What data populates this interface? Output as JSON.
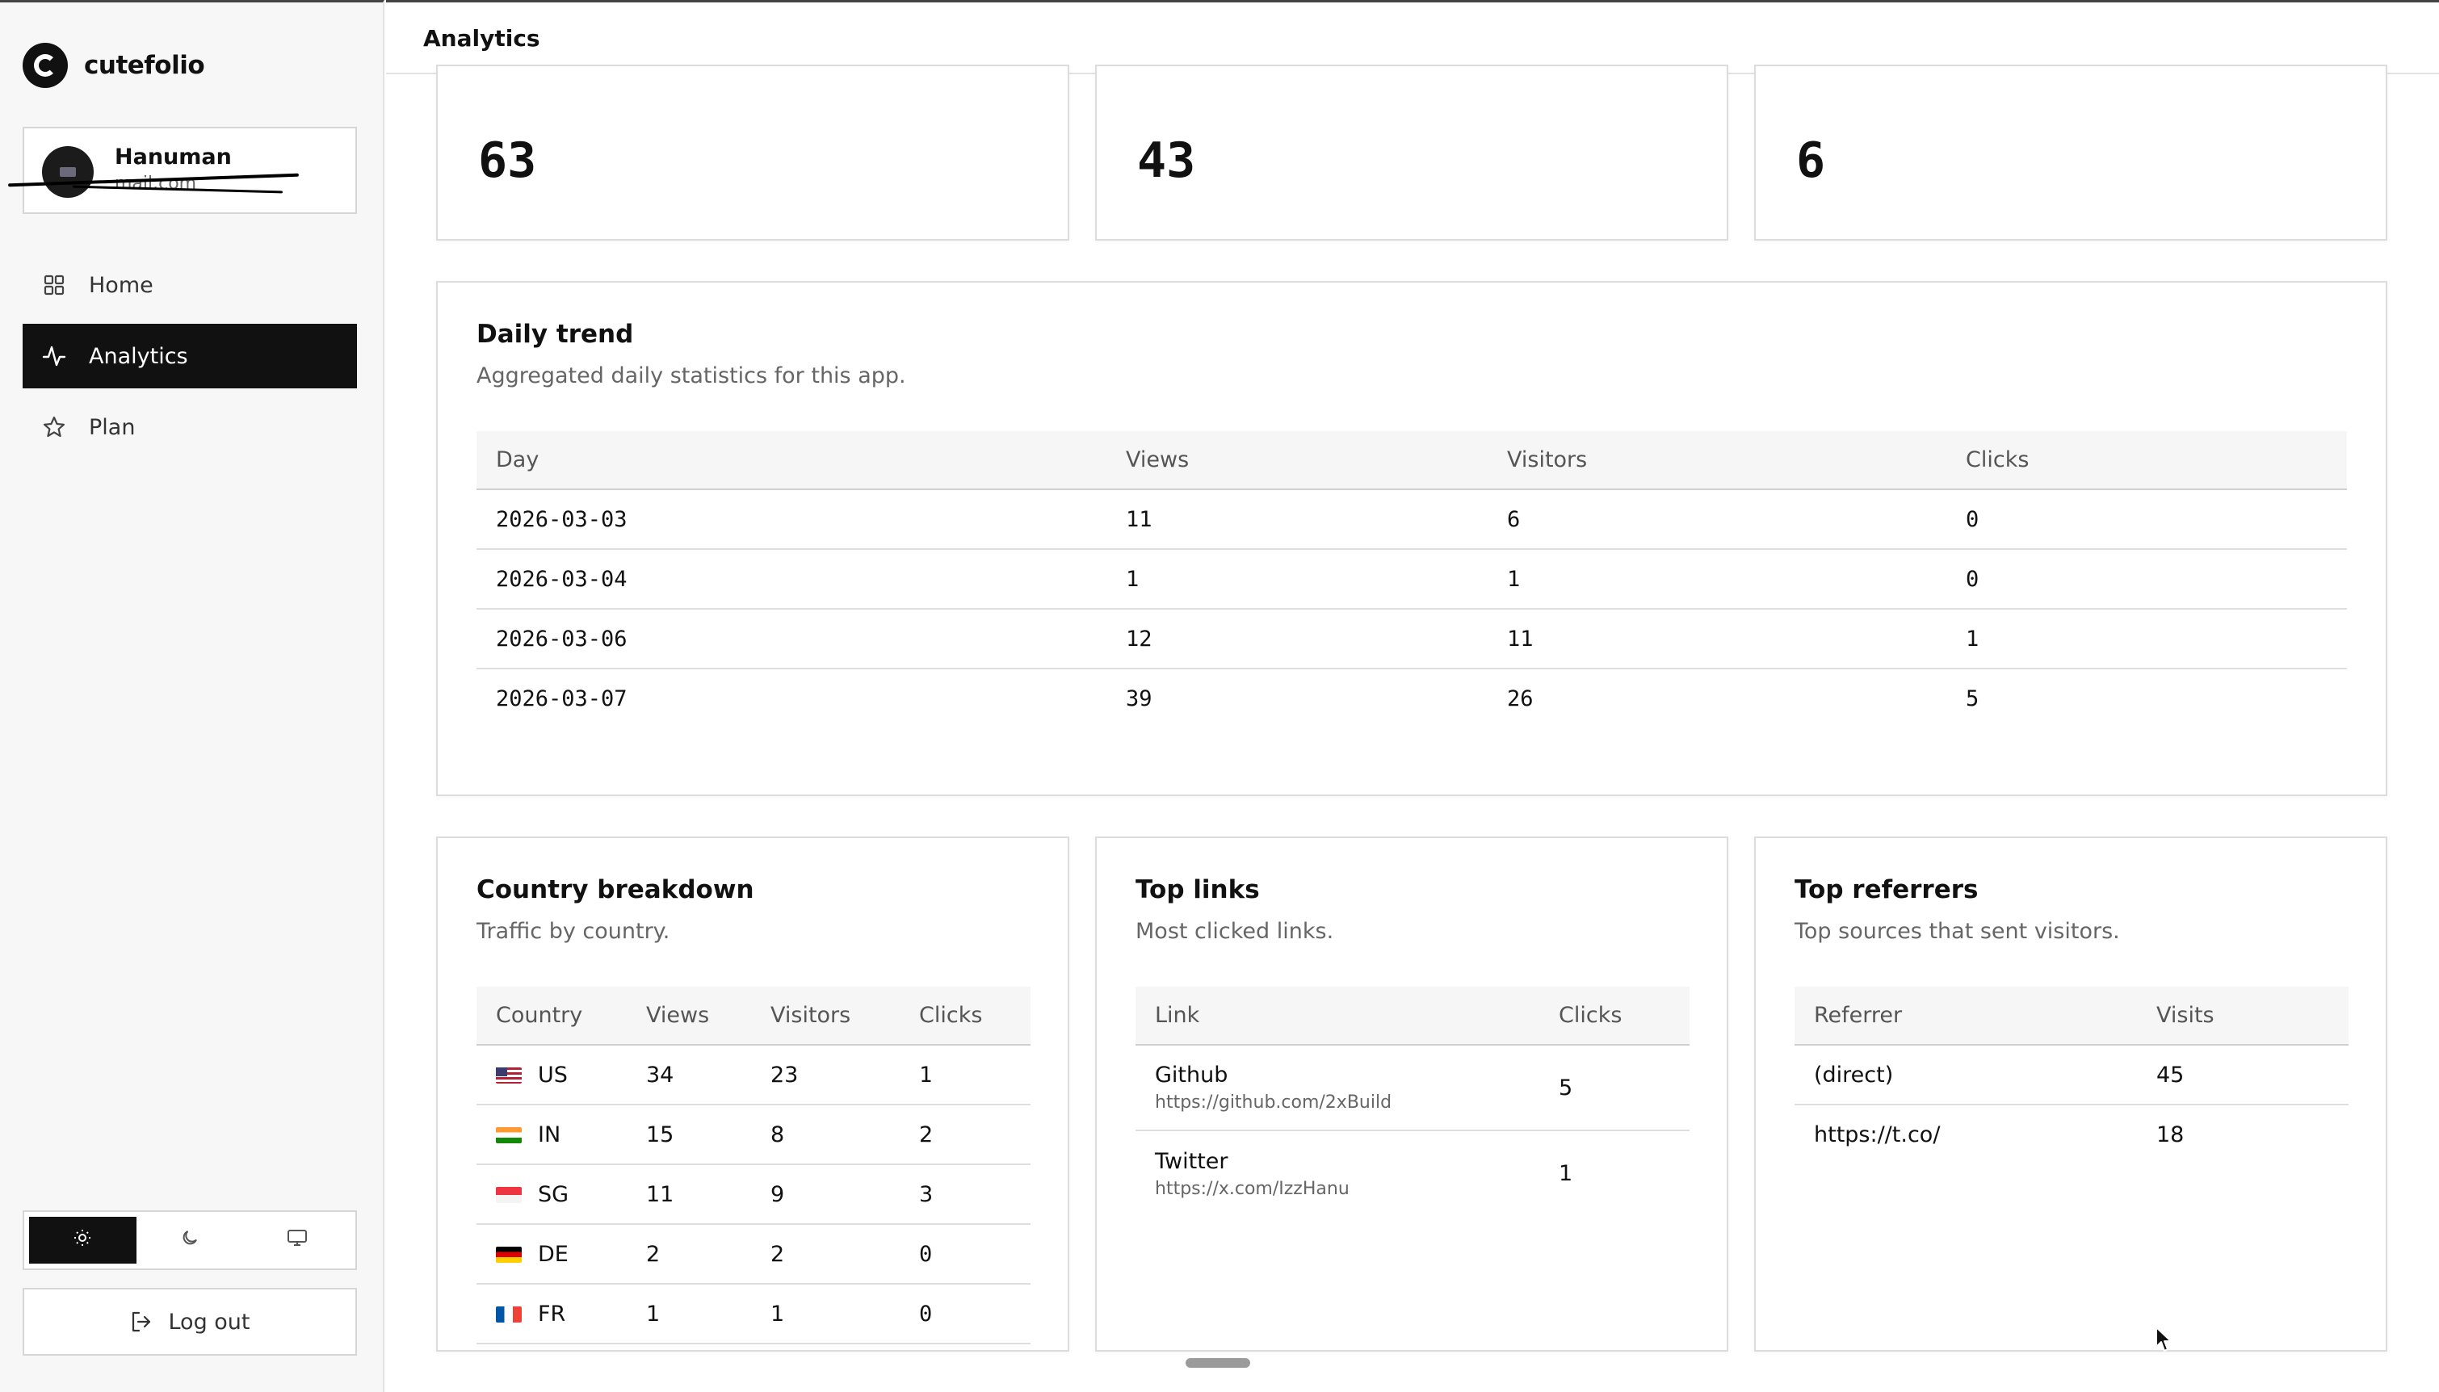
{
  "app": {
    "name": "cutefolio"
  },
  "user": {
    "name": "Hanuman",
    "email": "mail.com"
  },
  "nav": [
    {
      "label": "Home",
      "icon": "grid-icon",
      "active": false
    },
    {
      "label": "Analytics",
      "icon": "activity-icon",
      "active": true
    },
    {
      "label": "Plan",
      "icon": "star-icon",
      "active": false
    }
  ],
  "theme": {
    "options": [
      "light",
      "dark",
      "system"
    ],
    "selected": "light"
  },
  "logout": {
    "label": "Log out"
  },
  "header": {
    "title": "Analytics"
  },
  "stats": [
    "63",
    "43",
    "6"
  ],
  "daily": {
    "title": "Daily trend",
    "subtitle": "Aggregated daily statistics for this app.",
    "columns": [
      "Day",
      "Views",
      "Visitors",
      "Clicks"
    ],
    "rows": [
      [
        "2026-03-03",
        "11",
        "6",
        "0"
      ],
      [
        "2026-03-04",
        "1",
        "1",
        "0"
      ],
      [
        "2026-03-06",
        "12",
        "11",
        "1"
      ],
      [
        "2026-03-07",
        "39",
        "26",
        "5"
      ]
    ]
  },
  "country": {
    "title": "Country breakdown",
    "subtitle": "Traffic by country.",
    "columns": [
      "Country",
      "Views",
      "Visitors",
      "Clicks"
    ],
    "rows": [
      [
        "US",
        "34",
        "23",
        "1"
      ],
      [
        "IN",
        "15",
        "8",
        "2"
      ],
      [
        "SG",
        "11",
        "9",
        "3"
      ],
      [
        "DE",
        "2",
        "2",
        "0"
      ],
      [
        "FR",
        "1",
        "1",
        "0"
      ]
    ]
  },
  "links": {
    "title": "Top links",
    "subtitle": "Most clicked links.",
    "columns": [
      "Link",
      "Clicks"
    ],
    "rows": [
      {
        "label": "Github",
        "url": "https://github.com/2xBuild",
        "clicks": "5"
      },
      {
        "label": "Twitter",
        "url": "https://x.com/IzzHanu",
        "clicks": "1"
      }
    ]
  },
  "referrers": {
    "title": "Top referrers",
    "subtitle": "Top sources that sent visitors.",
    "columns": [
      "Referrer",
      "Visits"
    ],
    "rows": [
      [
        "(direct)",
        "45"
      ],
      [
        "https://t.co/",
        "18"
      ]
    ]
  }
}
